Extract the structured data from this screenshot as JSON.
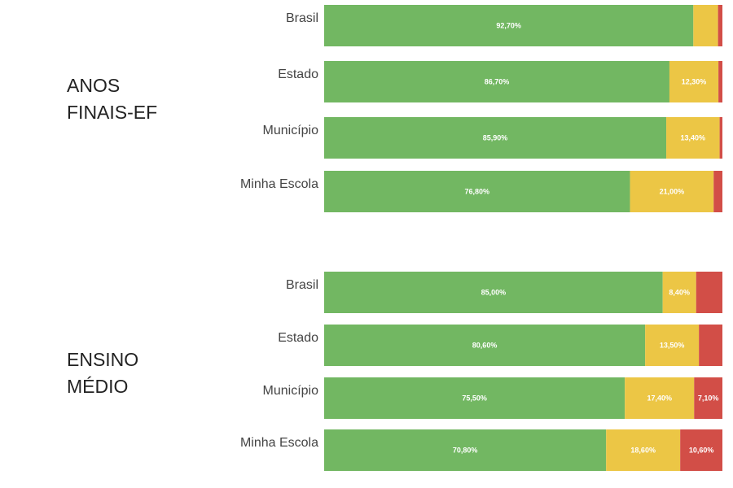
{
  "colors": {
    "green": "#72b762",
    "yellow": "#ecc645",
    "red": "#d24e47"
  },
  "chart_data": [
    {
      "type": "bar",
      "stacked": true,
      "orientation": "horizontal",
      "title": "ANOS FINAIS-EF",
      "title_lines": [
        "ANOS",
        "FINAIS-EF"
      ],
      "categories": [
        "Brasil",
        "Estado",
        "Município",
        "Minha Escola"
      ],
      "xlim": [
        0,
        100
      ],
      "series": [
        {
          "color": "#72b762",
          "values": [
            92.7,
            86.7,
            85.9,
            76.8
          ],
          "labels": [
            "92,70%",
            "86,70%",
            "85,90%",
            "76,80%"
          ]
        },
        {
          "color": "#ecc645",
          "values": [
            6.2,
            12.3,
            13.4,
            21.0
          ],
          "labels": [
            "",
            "12,30%",
            "13,40%",
            "21,00%"
          ]
        },
        {
          "color": "#d24e47",
          "values": [
            1.1,
            1.0,
            0.7,
            2.2
          ],
          "labels": [
            "",
            "",
            "",
            ""
          ]
        }
      ]
    },
    {
      "type": "bar",
      "stacked": true,
      "orientation": "horizontal",
      "title": "ENSINO MÉDIO",
      "title_lines": [
        "ENSINO",
        "MÉDIO"
      ],
      "categories": [
        "Brasil",
        "Estado",
        "Município",
        "Minha Escola"
      ],
      "xlim": [
        0,
        100
      ],
      "series": [
        {
          "color": "#72b762",
          "values": [
            85.0,
            80.6,
            75.5,
            70.8
          ],
          "labels": [
            "85,00%",
            "80,60%",
            "75,50%",
            "70,80%"
          ]
        },
        {
          "color": "#ecc645",
          "values": [
            8.4,
            13.5,
            17.4,
            18.6
          ],
          "labels": [
            "8,40%",
            "13,50%",
            "17,40%",
            "18,60%"
          ]
        },
        {
          "color": "#d24e47",
          "values": [
            6.6,
            5.9,
            7.1,
            10.6
          ],
          "labels": [
            "",
            "",
            "7,10%",
            "10,60%"
          ]
        }
      ]
    }
  ]
}
